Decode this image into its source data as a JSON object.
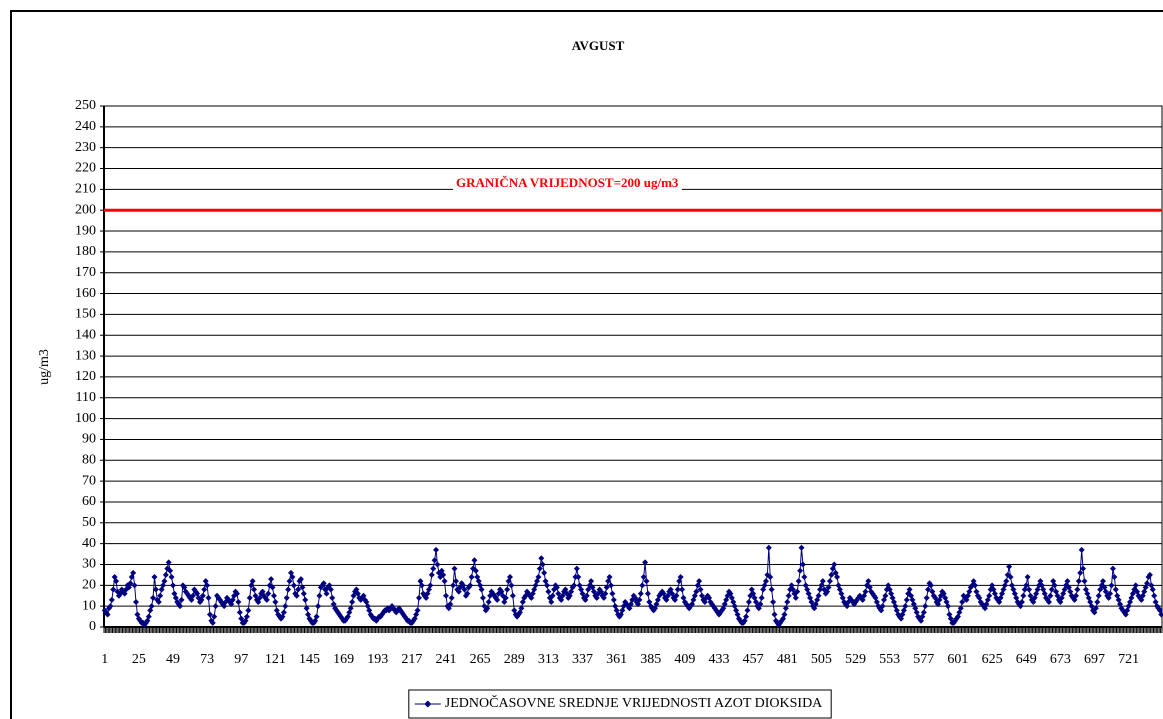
{
  "chart_data": {
    "type": "line",
    "title": "AVGUST",
    "y_label": "ug/m3",
    "threshold": {
      "value": 200,
      "label": "GRANIČNA VRIJEDNOST=200 ug/m3",
      "color": "#ff0000"
    },
    "ylim": [
      0,
      250
    ],
    "yticks": [
      0,
      10,
      20,
      30,
      40,
      50,
      60,
      70,
      80,
      90,
      100,
      110,
      120,
      130,
      140,
      150,
      160,
      170,
      180,
      190,
      200,
      210,
      220,
      230,
      240,
      250
    ],
    "grid": true,
    "legend": "bottom",
    "categories": [
      "1",
      null,
      null,
      null,
      null,
      null,
      null,
      null,
      null,
      null,
      null,
      null,
      null,
      null,
      null,
      null,
      null,
      null,
      null,
      null,
      null,
      null,
      null,
      null,
      "25",
      null,
      null,
      null,
      null,
      null,
      null,
      null,
      null,
      null,
      null,
      null,
      null,
      null,
      null,
      null,
      null,
      null,
      null,
      null,
      null,
      null,
      null,
      null,
      "49",
      null,
      null,
      null,
      null,
      null,
      null,
      null,
      null,
      null,
      null,
      null,
      null,
      null,
      null,
      null,
      null,
      null,
      null,
      null,
      null,
      null,
      null,
      null,
      "73",
      null,
      null,
      null,
      null,
      null,
      null,
      null,
      null,
      null,
      null,
      null,
      null,
      null,
      null,
      null,
      null,
      null,
      null,
      null,
      null,
      null,
      null,
      null,
      "97",
      null,
      null,
      null,
      null,
      null,
      null,
      null,
      null,
      null,
      null,
      null,
      null,
      null,
      null,
      null,
      null,
      null,
      null,
      null,
      null,
      null,
      null,
      null,
      "121",
      null,
      null,
      null,
      null,
      null,
      null,
      null,
      null,
      null,
      null,
      null,
      null,
      null,
      null,
      null,
      null,
      null,
      null,
      null,
      null,
      null,
      null,
      null,
      "145",
      null,
      null,
      null,
      null,
      null,
      null,
      null,
      null,
      null,
      null,
      null,
      null,
      null,
      null,
      null,
      null,
      null,
      null,
      null,
      null,
      null,
      null,
      null,
      "169",
      null,
      null,
      null,
      null,
      null,
      null,
      null,
      null,
      null,
      null,
      null,
      null,
      null,
      null,
      null,
      null,
      null,
      null,
      null,
      null,
      null,
      null,
      null,
      "193",
      null,
      null,
      null,
      null,
      null,
      null,
      null,
      null,
      null,
      null,
      null,
      null,
      null,
      null,
      null,
      null,
      null,
      null,
      null,
      null,
      null,
      null,
      null,
      "217",
      null,
      null,
      null,
      null,
      null,
      null,
      null,
      null,
      null,
      null,
      null,
      null,
      null,
      null,
      null,
      null,
      null,
      null,
      null,
      null,
      null,
      null,
      null,
      "241",
      null,
      null,
      null,
      null,
      null,
      null,
      null,
      null,
      null,
      null,
      null,
      null,
      null,
      null,
      null,
      null,
      null,
      null,
      null,
      null,
      null,
      null,
      null,
      "265",
      null,
      null,
      null,
      null,
      null,
      null,
      null,
      null,
      null,
      null,
      null,
      null,
      null,
      null,
      null,
      null,
      null,
      null,
      null,
      null,
      null,
      null,
      null,
      "289",
      null,
      null,
      null,
      null,
      null,
      null,
      null,
      null,
      null,
      null,
      null,
      null,
      null,
      null,
      null,
      null,
      null,
      null,
      null,
      null,
      null,
      null,
      null,
      "313",
      null,
      null,
      null,
      null,
      null,
      null,
      null,
      null,
      null,
      null,
      null,
      null,
      null,
      null,
      null,
      null,
      null,
      null,
      null,
      null,
      null,
      null,
      null,
      "337",
      null,
      null,
      null,
      null,
      null,
      null,
      null,
      null,
      null,
      null,
      null,
      null,
      null,
      null,
      null,
      null,
      null,
      null,
      null,
      null,
      null,
      null,
      null,
      "361",
      null,
      null,
      null,
      null,
      null,
      null,
      null,
      null,
      null,
      null,
      null,
      null,
      null,
      null,
      null,
      null,
      null,
      null,
      null,
      null,
      null,
      null,
      null,
      "385",
      null,
      null,
      null,
      null,
      null,
      null,
      null,
      null,
      null,
      null,
      null,
      null,
      null,
      null,
      null,
      null,
      null,
      null,
      null,
      null,
      null,
      null,
      null,
      "409",
      null,
      null,
      null,
      null,
      null,
      null,
      null,
      null,
      null,
      null,
      null,
      null,
      null,
      null,
      null,
      null,
      null,
      null,
      null,
      null,
      null,
      null,
      null,
      "433",
      null,
      null,
      null,
      null,
      null,
      null,
      null,
      null,
      null,
      null,
      null,
      null,
      null,
      null,
      null,
      null,
      null,
      null,
      null,
      null,
      null,
      null,
      null,
      "457",
      null,
      null,
      null,
      null,
      null,
      null,
      null,
      null,
      null,
      null,
      null,
      null,
      null,
      null,
      null,
      null,
      null,
      null,
      null,
      null,
      null,
      null,
      null,
      "481",
      null,
      null,
      null,
      null,
      null,
      null,
      null,
      null,
      null,
      null,
      null,
      null,
      null,
      null,
      null,
      null,
      null,
      null,
      null,
      null,
      null,
      null,
      null,
      "505",
      null,
      null,
      null,
      null,
      null,
      null,
      null,
      null,
      null,
      null,
      null,
      null,
      null,
      null,
      null,
      null,
      null,
      null,
      null,
      null,
      null,
      null,
      null,
      "529",
      null,
      null,
      null,
      null,
      null,
      null,
      null,
      null,
      null,
      null,
      null,
      null,
      null,
      null,
      null,
      null,
      null,
      null,
      null,
      null,
      null,
      null,
      null,
      "553",
      null,
      null,
      null,
      null,
      null,
      null,
      null,
      null,
      null,
      null,
      null,
      null,
      null,
      null,
      null,
      null,
      null,
      null,
      null,
      null,
      null,
      null,
      null,
      "577",
      null,
      null,
      null,
      null,
      null,
      null,
      null,
      null,
      null,
      null,
      null,
      null,
      null,
      null,
      null,
      null,
      null,
      null,
      null,
      null,
      null,
      null,
      null,
      "601",
      null,
      null,
      null,
      null,
      null,
      null,
      null,
      null,
      null,
      null,
      null,
      null,
      null,
      null,
      null,
      null,
      null,
      null,
      null,
      null,
      null,
      null,
      null,
      "625",
      null,
      null,
      null,
      null,
      null,
      null,
      null,
      null,
      null,
      null,
      null,
      null,
      null,
      null,
      null,
      null,
      null,
      null,
      null,
      null,
      null,
      null,
      null,
      "649",
      null,
      null,
      null,
      null,
      null,
      null,
      null,
      null,
      null,
      null,
      null,
      null,
      null,
      null,
      null,
      null,
      null,
      null,
      null,
      null,
      null,
      null,
      null,
      "673",
      null,
      null,
      null,
      null,
      null,
      null,
      null,
      null,
      null,
      null,
      null,
      null,
      null,
      null,
      null,
      null,
      null,
      null,
      null,
      null,
      null,
      null,
      null,
      "697",
      null,
      null,
      null,
      null,
      null,
      null,
      null,
      null,
      null,
      null,
      null,
      null,
      null,
      null,
      null,
      null,
      null,
      null,
      null,
      null,
      null,
      null,
      null,
      "721",
      null,
      null,
      null,
      null,
      null,
      null,
      null,
      null,
      null,
      null,
      null,
      null,
      null,
      null,
      null,
      null,
      null,
      null,
      null,
      null,
      null,
      null,
      null
    ],
    "series": [
      {
        "name": "JEDNOČASOVNE SREDNJE VRIJEDNOSTI AZOT DIOKSIDA",
        "color": "#000080",
        "values": [
          8,
          7,
          6,
          9,
          10,
          13,
          18,
          24,
          22,
          17,
          15,
          16,
          18,
          17,
          16,
          18,
          20,
          19,
          21,
          24,
          26,
          20,
          12,
          6,
          4,
          3,
          2,
          2,
          1,
          2,
          3,
          5,
          8,
          10,
          14,
          24,
          18,
          13,
          12,
          15,
          18,
          20,
          22,
          25,
          28,
          31,
          27,
          24,
          20,
          16,
          14,
          12,
          11,
          10,
          13,
          20,
          19,
          17,
          16,
          15,
          14,
          13,
          15,
          18,
          17,
          16,
          14,
          12,
          13,
          15,
          18,
          22,
          20,
          14,
          6,
          3,
          2,
          5,
          10,
          15,
          14,
          13,
          12,
          11,
          10,
          12,
          14,
          13,
          12,
          11,
          13,
          15,
          17,
          16,
          12,
          7,
          4,
          2,
          2,
          3,
          5,
          8,
          14,
          20,
          22,
          18,
          15,
          13,
          12,
          14,
          16,
          17,
          15,
          14,
          13,
          16,
          20,
          23,
          19,
          15,
          12,
          8,
          6,
          5,
          4,
          5,
          7,
          10,
          14,
          18,
          22,
          26,
          24,
          20,
          16,
          15,
          18,
          22,
          23,
          19,
          16,
          13,
          9,
          6,
          4,
          3,
          2,
          2,
          3,
          5,
          10,
          15,
          19,
          20,
          21,
          18,
          16,
          19,
          20,
          18,
          14,
          11,
          9,
          8,
          7,
          6,
          5,
          4,
          3,
          3,
          4,
          5,
          7,
          9,
          12,
          15,
          17,
          18,
          16,
          14,
          13,
          14,
          15,
          13,
          12,
          10,
          8,
          6,
          5,
          4,
          4,
          3,
          4,
          5,
          5,
          6,
          7,
          8,
          8,
          9,
          8,
          9,
          10,
          9,
          8,
          7,
          8,
          9,
          8,
          7,
          6,
          5,
          4,
          3,
          3,
          2,
          2,
          3,
          4,
          6,
          8,
          14,
          22,
          20,
          16,
          15,
          14,
          16,
          18,
          20,
          25,
          28,
          32,
          37,
          30,
          26,
          24,
          27,
          25,
          22,
          15,
          10,
          9,
          11,
          14,
          20,
          28,
          22,
          18,
          17,
          19,
          21,
          20,
          18,
          15,
          16,
          19,
          20,
          24,
          28,
          32,
          27,
          24,
          22,
          20,
          18,
          14,
          10,
          8,
          9,
          12,
          15,
          17,
          16,
          15,
          14,
          13,
          16,
          18,
          17,
          15,
          12,
          14,
          18,
          22,
          24,
          20,
          15,
          8,
          6,
          5,
          6,
          7,
          9,
          12,
          14,
          15,
          17,
          16,
          15,
          14,
          16,
          18,
          20,
          22,
          24,
          28,
          33,
          30,
          26,
          22,
          20,
          17,
          14,
          12,
          15,
          18,
          20,
          19,
          16,
          14,
          13,
          15,
          17,
          18,
          16,
          14,
          15,
          17,
          19,
          20,
          24,
          28,
          24,
          20,
          18,
          16,
          14,
          13,
          15,
          18,
          20,
          22,
          19,
          17,
          15,
          14,
          16,
          18,
          17,
          15,
          14,
          16,
          19,
          22,
          24,
          20,
          16,
          13,
          10,
          8,
          6,
          5,
          6,
          8,
          10,
          12,
          11,
          10,
          9,
          11,
          13,
          15,
          14,
          12,
          11,
          13,
          16,
          20,
          24,
          31,
          22,
          16,
          12,
          10,
          9,
          8,
          9,
          11,
          13,
          15,
          16,
          17,
          16,
          14,
          13,
          15,
          17,
          18,
          16,
          14,
          13,
          15,
          18,
          22,
          24,
          18,
          14,
          12,
          11,
          10,
          9,
          10,
          11,
          13,
          15,
          17,
          20,
          22,
          18,
          15,
          13,
          12,
          14,
          15,
          14,
          12,
          11,
          10,
          9,
          8,
          7,
          6,
          7,
          8,
          9,
          11,
          13,
          15,
          17,
          16,
          14,
          12,
          10,
          8,
          6,
          4,
          3,
          2,
          2,
          3,
          5,
          8,
          12,
          15,
          18,
          16,
          14,
          12,
          10,
          9,
          11,
          14,
          18,
          20,
          22,
          25,
          38,
          24,
          18,
          12,
          6,
          3,
          2,
          1,
          2,
          3,
          4,
          6,
          9,
          12,
          15,
          18,
          20,
          18,
          16,
          14,
          17,
          22,
          27,
          38,
          30,
          24,
          20,
          18,
          16,
          14,
          12,
          10,
          9,
          11,
          13,
          15,
          18,
          20,
          22,
          18,
          16,
          17,
          19,
          22,
          25,
          28,
          30,
          26,
          24,
          20,
          18,
          16,
          14,
          12,
          11,
          10,
          12,
          14,
          13,
          12,
          11,
          12,
          13,
          14,
          15,
          14,
          13,
          15,
          17,
          20,
          22,
          19,
          17,
          16,
          15,
          14,
          12,
          10,
          9,
          8,
          10,
          13,
          15,
          18,
          20,
          18,
          16,
          14,
          12,
          10,
          8,
          6,
          5,
          4,
          6,
          8,
          10,
          13,
          16,
          18,
          15,
          13,
          11,
          9,
          7,
          5,
          4,
          3,
          5,
          7,
          10,
          14,
          18,
          21,
          20,
          17,
          15,
          14,
          12,
          11,
          13,
          15,
          17,
          16,
          14,
          12,
          10,
          6,
          4,
          2,
          2,
          3,
          4,
          5,
          7,
          9,
          12,
          15,
          14,
          13,
          15,
          17,
          19,
          20,
          22,
          20,
          17,
          15,
          14,
          12,
          11,
          10,
          9,
          11,
          13,
          15,
          18,
          20,
          18,
          16,
          14,
          13,
          12,
          14,
          16,
          18,
          20,
          22,
          25,
          29,
          24,
          20,
          18,
          16,
          14,
          12,
          11,
          10,
          12,
          15,
          18,
          20,
          24,
          18,
          15,
          13,
          12,
          14,
          16,
          18,
          20,
          22,
          20,
          18,
          16,
          14,
          13,
          12,
          15,
          18,
          22,
          20,
          17,
          15,
          13,
          12,
          14,
          16,
          18,
          20,
          22,
          19,
          17,
          15,
          14,
          13,
          15,
          18,
          22,
          26,
          37,
          28,
          22,
          18,
          16,
          14,
          12,
          10,
          8,
          7,
          9,
          12,
          15,
          18,
          20,
          22,
          19,
          17,
          15,
          14,
          16,
          20,
          28,
          24,
          18,
          15,
          13,
          11,
          9,
          8,
          7,
          6,
          8,
          10,
          12,
          14,
          16,
          18,
          20,
          17,
          15,
          14,
          13,
          15,
          17,
          19,
          21,
          24,
          25,
          20,
          18,
          15,
          12,
          10,
          9,
          8,
          6
        ]
      }
    ]
  }
}
